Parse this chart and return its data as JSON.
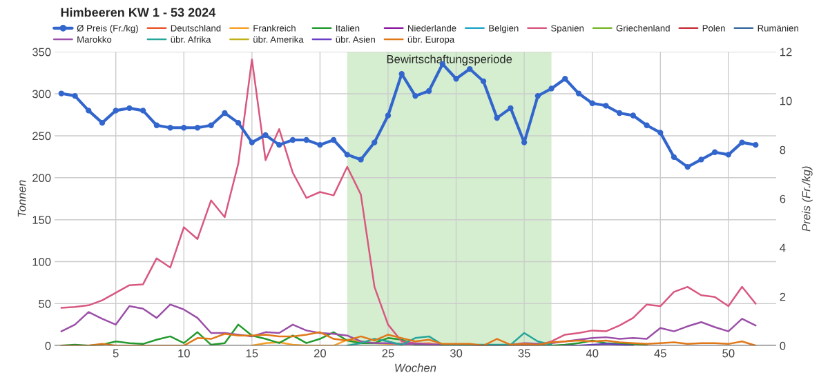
{
  "chart_data": {
    "type": "line",
    "title": "Himbeeren KW 1 - 53 2024",
    "xlabel": "Wochen",
    "ylabel": "Tonnen",
    "y2label": "Preis (Fr./kg)",
    "x": [
      1,
      2,
      3,
      4,
      5,
      6,
      7,
      8,
      9,
      10,
      11,
      12,
      13,
      14,
      15,
      16,
      17,
      18,
      19,
      20,
      21,
      22,
      23,
      24,
      25,
      26,
      27,
      28,
      29,
      30,
      31,
      32,
      33,
      34,
      35,
      36,
      37,
      38,
      39,
      40,
      41,
      42,
      43,
      44,
      45,
      46,
      47,
      48,
      49,
      50,
      51,
      52
    ],
    "xlim": [
      0.5,
      53.5
    ],
    "xticks": [
      5,
      10,
      15,
      20,
      25,
      30,
      35,
      40,
      45,
      50
    ],
    "ylim": [
      0,
      350
    ],
    "yticks": [
      0,
      50,
      100,
      150,
      200,
      250,
      300,
      350
    ],
    "y2lim": [
      0,
      12
    ],
    "y2ticks": [
      0,
      2,
      4,
      6,
      8,
      10,
      12
    ],
    "grid": true,
    "legend": "top left",
    "bands": [
      {
        "axis": "x",
        "from": 22,
        "to": 37,
        "label": "Bewirtschaftungsperiode",
        "color": "#d4eecf"
      }
    ],
    "series": [
      {
        "name": "Ø Preis (Fr./kg)",
        "color": "#3366cc",
        "axis": "y2",
        "marker": "circle",
        "values": [
          10.3,
          10.2,
          9.6,
          9.1,
          9.6,
          9.7,
          9.6,
          9.0,
          8.9,
          8.9,
          8.9,
          9.0,
          9.5,
          9.1,
          8.3,
          8.6,
          8.2,
          8.4,
          8.4,
          8.2,
          8.4,
          7.8,
          7.6,
          8.3,
          9.4,
          11.1,
          10.2,
          10.4,
          11.5,
          10.9,
          11.3,
          10.8,
          9.3,
          9.7,
          8.3,
          10.2,
          10.5,
          10.9,
          10.3,
          9.9,
          9.8,
          9.5,
          9.4,
          9.0,
          8.7,
          7.7,
          7.3,
          7.6,
          7.9,
          7.8,
          8.3,
          8.2
        ]
      },
      {
        "name": "Deutschland",
        "color": "#e8562a",
        "values": [
          null,
          null,
          null,
          null,
          null,
          null,
          null,
          null,
          null,
          null,
          null,
          null,
          null,
          null,
          null,
          null,
          null,
          null,
          null,
          null,
          null,
          null,
          null,
          null,
          null,
          null,
          null,
          null,
          null,
          null,
          null,
          null,
          null,
          null,
          null,
          null,
          null,
          null,
          null,
          null,
          null,
          null,
          null,
          null,
          null,
          null,
          null,
          null,
          null,
          null,
          null,
          null
        ]
      },
      {
        "name": "Frankreich",
        "color": "#f7a128",
        "values": [
          null,
          null,
          null,
          null,
          null,
          null,
          null,
          null,
          null,
          null,
          null,
          null,
          null,
          null,
          0,
          3,
          4,
          1,
          0,
          null,
          0,
          7,
          5,
          3,
          2,
          2,
          2,
          3,
          0,
          null,
          null,
          null,
          null,
          null,
          null,
          null,
          null,
          null,
          null,
          null,
          null,
          null,
          null,
          null,
          null,
          null,
          null,
          null,
          null,
          null,
          null,
          null
        ]
      },
      {
        "name": "Italien",
        "color": "#229a2e",
        "values": [
          0,
          1,
          0,
          1,
          5,
          3,
          2,
          7,
          11,
          3,
          16,
          1,
          3,
          25,
          12,
          8,
          3,
          12,
          3,
          8,
          16,
          6,
          3,
          3,
          9,
          7,
          1,
          null,
          null,
          null,
          null,
          null,
          null,
          null,
          null,
          null,
          0,
          1,
          3,
          6,
          3,
          2,
          2,
          1,
          null,
          null,
          null,
          null,
          null,
          null,
          null,
          null
        ]
      },
      {
        "name": "Niederlande",
        "color": "#8b1a9e",
        "values": [
          null,
          null,
          null,
          null,
          null,
          null,
          null,
          null,
          null,
          null,
          null,
          null,
          null,
          null,
          null,
          null,
          null,
          null,
          null,
          null,
          null,
          null,
          null,
          null,
          null,
          null,
          null,
          null,
          null,
          null,
          null,
          null,
          null,
          null,
          null,
          null,
          null,
          null,
          null,
          null,
          null,
          null,
          null,
          null,
          null,
          null,
          null,
          null,
          null,
          null,
          null,
          null
        ]
      },
      {
        "name": "Belgien",
        "color": "#22a6c8",
        "values": [
          null,
          null,
          null,
          null,
          null,
          null,
          null,
          null,
          null,
          null,
          null,
          null,
          null,
          null,
          null,
          null,
          null,
          null,
          null,
          null,
          null,
          null,
          null,
          null,
          null,
          null,
          null,
          null,
          null,
          null,
          null,
          null,
          null,
          null,
          null,
          null,
          null,
          null,
          null,
          null,
          null,
          null,
          null,
          null,
          null,
          null,
          null,
          null,
          null,
          null,
          null,
          null
        ]
      },
      {
        "name": "Spanien",
        "color": "#d9577f",
        "values": [
          45,
          46,
          48,
          54,
          63,
          72,
          73,
          104,
          93,
          141,
          127,
          173,
          153,
          217,
          341,
          221,
          258,
          206,
          176,
          183,
          179,
          213,
          180,
          70,
          25,
          5,
          3,
          2,
          1,
          1,
          1,
          0,
          0,
          0,
          0,
          0,
          5,
          13,
          15,
          18,
          17,
          24,
          33,
          49,
          47,
          64,
          70,
          60,
          58,
          47,
          70,
          50
        ]
      },
      {
        "name": "Griechenland",
        "color": "#79b82a",
        "values": [
          null,
          null,
          null,
          null,
          null,
          null,
          null,
          null,
          null,
          null,
          null,
          null,
          null,
          null,
          null,
          null,
          null,
          null,
          null,
          null,
          null,
          null,
          null,
          null,
          null,
          null,
          null,
          null,
          null,
          null,
          null,
          null,
          null,
          null,
          null,
          null,
          null,
          null,
          null,
          null,
          null,
          null,
          null,
          null,
          null,
          null,
          null,
          null,
          null,
          null,
          null,
          null
        ]
      },
      {
        "name": "Polen",
        "color": "#c8323c",
        "values": [
          null,
          null,
          null,
          null,
          null,
          null,
          null,
          null,
          null,
          null,
          null,
          null,
          null,
          null,
          null,
          null,
          null,
          null,
          null,
          null,
          null,
          null,
          null,
          null,
          null,
          null,
          null,
          null,
          null,
          null,
          null,
          null,
          null,
          null,
          null,
          null,
          null,
          null,
          null,
          null,
          null,
          null,
          null,
          null,
          null,
          null,
          null,
          null,
          null,
          null,
          null,
          null
        ]
      },
      {
        "name": "Rumänien",
        "color": "#3b6aa0",
        "values": [
          null,
          null,
          null,
          null,
          null,
          null,
          null,
          null,
          null,
          null,
          null,
          null,
          null,
          null,
          null,
          null,
          null,
          null,
          null,
          null,
          null,
          null,
          null,
          null,
          null,
          null,
          null,
          null,
          null,
          null,
          null,
          null,
          null,
          null,
          null,
          null,
          null,
          null,
          null,
          null,
          null,
          null,
          null,
          null,
          null,
          null,
          null,
          null,
          null,
          null,
          null,
          null
        ]
      },
      {
        "name": "Marokko",
        "color": "#9b4fa8",
        "values": [
          17,
          25,
          40,
          32,
          25,
          47,
          44,
          33,
          49,
          43,
          33,
          15,
          15,
          13,
          11,
          16,
          15,
          25,
          18,
          15,
          14,
          12,
          5,
          3,
          3,
          2,
          2,
          1,
          1,
          1,
          1,
          0,
          0,
          1,
          3,
          2,
          3,
          5,
          7,
          9,
          10,
          8,
          9,
          8,
          21,
          17,
          23,
          28,
          22,
          17,
          32,
          24
        ]
      },
      {
        "name": "übr. Afrika",
        "color": "#26a69a",
        "values": [
          null,
          null,
          null,
          null,
          null,
          null,
          null,
          null,
          null,
          null,
          null,
          null,
          null,
          null,
          null,
          null,
          null,
          null,
          null,
          null,
          null,
          0,
          3,
          8,
          5,
          1,
          9,
          11,
          1,
          null,
          null,
          null,
          null,
          1,
          15,
          5,
          1,
          null,
          null,
          null,
          null,
          null,
          null,
          null,
          null,
          null,
          null,
          null,
          null,
          null,
          null,
          null
        ]
      },
      {
        "name": "übr. Amerika",
        "color": "#c0b01a",
        "values": [
          null,
          null,
          null,
          null,
          null,
          null,
          null,
          null,
          null,
          null,
          null,
          null,
          null,
          null,
          null,
          null,
          null,
          null,
          null,
          null,
          null,
          null,
          null,
          null,
          null,
          null,
          null,
          null,
          null,
          null,
          null,
          null,
          null,
          null,
          null,
          null,
          null,
          null,
          null,
          null,
          null,
          null,
          null,
          null,
          null,
          null,
          null,
          null,
          null,
          null,
          null,
          null
        ]
      },
      {
        "name": "übr. Asien",
        "color": "#6a3fc8",
        "values": [
          null,
          null,
          null,
          null,
          null,
          null,
          null,
          null,
          null,
          null,
          null,
          null,
          null,
          null,
          null,
          null,
          null,
          null,
          null,
          null,
          null,
          null,
          null,
          null,
          null,
          null,
          null,
          null,
          null,
          null,
          null,
          null,
          null,
          null,
          null,
          null,
          null,
          0,
          0,
          1,
          2,
          1,
          0,
          null,
          null,
          null,
          null,
          null,
          null,
          null,
          null,
          null
        ]
      },
      {
        "name": "übr. Europa",
        "color": "#e07818",
        "values": [
          0,
          0,
          0,
          2,
          0,
          0,
          0,
          0,
          0,
          0,
          9,
          8,
          14,
          12,
          12,
          13,
          11,
          11,
          13,
          16,
          8,
          6,
          11,
          6,
          13,
          9,
          5,
          7,
          2,
          2,
          2,
          0,
          8,
          1,
          2,
          1,
          4,
          5,
          6,
          5,
          6,
          4,
          3,
          2,
          3,
          4,
          2,
          3,
          3,
          2,
          5,
          0
        ]
      }
    ]
  }
}
